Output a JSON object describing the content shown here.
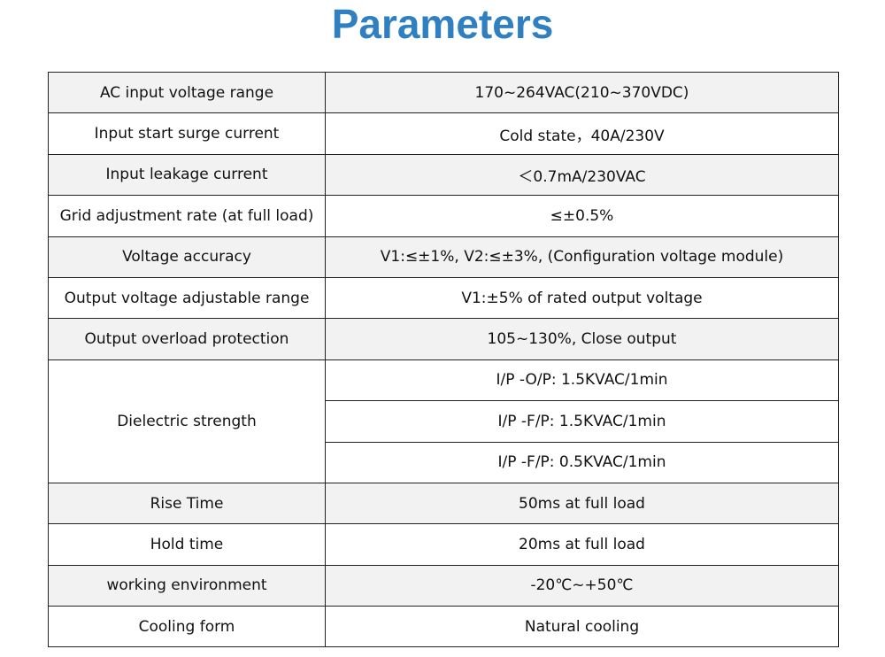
{
  "header": {
    "title": "Parameters"
  },
  "table": {
    "rows": [
      {
        "label": "AC input voltage range",
        "values": [
          "170~264VAC(210~370VDC)"
        ]
      },
      {
        "label": "Input start surge current",
        "values": [
          "Cold state，40A/230V"
        ]
      },
      {
        "label": "Input leakage current",
        "values": [
          "＜0.7mA/230VAC"
        ]
      },
      {
        "label": "Grid adjustment rate (at full load)",
        "values": [
          "≤±0.5%"
        ]
      },
      {
        "label": "Voltage accuracy",
        "values": [
          "V1:≤±1%, V2:≤±3%, (Configuration voltage module)"
        ]
      },
      {
        "label": "Output voltage adjustable range",
        "values": [
          "V1:±5% of rated output voltage"
        ]
      },
      {
        "label": "Output overload protection",
        "values": [
          "105~130%, Close output"
        ]
      },
      {
        "label": "Dielectric strength",
        "values": [
          "I/P -O/P: 1.5KVAC/1min",
          "I/P -F/P: 1.5KVAC/1min",
          "I/P -F/P: 0.5KVAC/1min"
        ]
      },
      {
        "label": "Rise Time",
        "values": [
          "50ms at full load"
        ]
      },
      {
        "label": "Hold time",
        "values": [
          "20ms at full load"
        ]
      },
      {
        "label": "working environment",
        "values": [
          "-20℃~+50℃"
        ]
      },
      {
        "label": "Cooling form",
        "values": [
          "Natural cooling"
        ]
      }
    ]
  }
}
